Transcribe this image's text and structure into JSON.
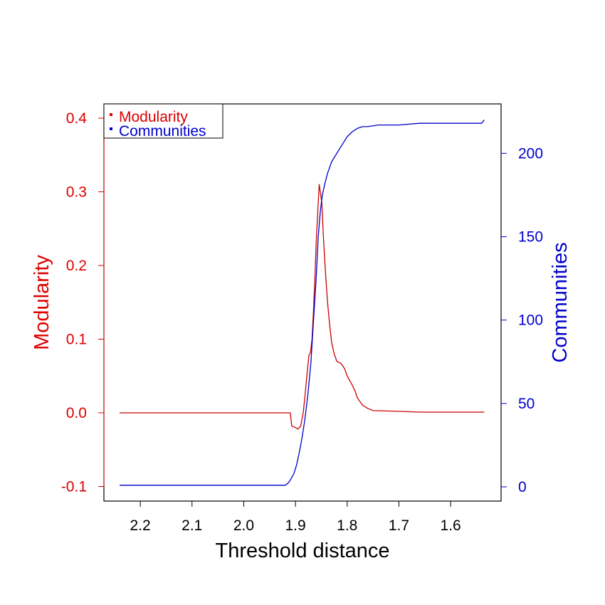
{
  "chart_data": {
    "type": "line",
    "xlabel": "Threshold distance",
    "x_reversed": true,
    "xlim": [
      2.24,
      1.53
    ],
    "x_ticks": [
      2.2,
      2.1,
      2.0,
      1.9,
      1.8,
      1.7,
      1.6
    ],
    "x_tick_labels": [
      "2.2",
      "2.1",
      "2.0",
      "1.9",
      "1.8",
      "1.7",
      "1.6"
    ],
    "y_left": {
      "label": "Modularity",
      "color": "#dd0000",
      "ylim": [
        -0.1,
        0.4
      ],
      "ticks": [
        -0.1,
        0.0,
        0.1,
        0.2,
        0.3,
        0.4
      ],
      "tick_labels": [
        "-0.1",
        "0.0",
        "0.1",
        "0.2",
        "0.3",
        "0.4"
      ]
    },
    "y_right": {
      "label": "Communities",
      "color": "#0000cc",
      "ylim": [
        0,
        220
      ],
      "ticks": [
        0,
        50,
        100,
        150,
        200
      ],
      "tick_labels": [
        "0",
        "50",
        "100",
        "150",
        "200"
      ]
    },
    "legend": {
      "placement": "top-left",
      "entries": [
        {
          "label": "Modularity",
          "color": "#dd0000"
        },
        {
          "label": "Communities",
          "color": "#0000cc"
        }
      ]
    },
    "series": [
      {
        "name": "Modularity",
        "axis": "left",
        "color": "#cc0000",
        "points": [
          [
            2.24,
            0.0
          ],
          [
            2.1,
            0.0
          ],
          [
            2.0,
            0.0
          ],
          [
            1.915,
            0.0
          ],
          [
            1.91,
            0.0
          ],
          [
            1.907,
            -0.018
          ],
          [
            1.9,
            -0.02
          ],
          [
            1.895,
            -0.022
          ],
          [
            1.89,
            -0.018
          ],
          [
            1.885,
            0.0
          ],
          [
            1.882,
            0.02
          ],
          [
            1.878,
            0.05
          ],
          [
            1.874,
            0.078
          ],
          [
            1.871,
            0.082
          ],
          [
            1.868,
            0.1
          ],
          [
            1.865,
            0.14
          ],
          [
            1.862,
            0.19
          ],
          [
            1.86,
            0.23
          ],
          [
            1.857,
            0.27
          ],
          [
            1.854,
            0.31
          ],
          [
            1.852,
            0.3
          ],
          [
            1.849,
            0.285
          ],
          [
            1.846,
            0.24
          ],
          [
            1.842,
            0.19
          ],
          [
            1.838,
            0.15
          ],
          [
            1.834,
            0.12
          ],
          [
            1.83,
            0.095
          ],
          [
            1.825,
            0.08
          ],
          [
            1.82,
            0.07
          ],
          [
            1.812,
            0.067
          ],
          [
            1.805,
            0.06
          ],
          [
            1.8,
            0.05
          ],
          [
            1.792,
            0.04
          ],
          [
            1.785,
            0.03
          ],
          [
            1.78,
            0.02
          ],
          [
            1.77,
            0.01
          ],
          [
            1.76,
            0.006
          ],
          [
            1.75,
            0.003
          ],
          [
            1.7,
            0.002
          ],
          [
            1.66,
            0.001
          ],
          [
            1.6,
            0.001
          ],
          [
            1.535,
            0.001
          ]
        ]
      },
      {
        "name": "Communities",
        "axis": "right",
        "color": "#0000cc",
        "points": [
          [
            2.24,
            1
          ],
          [
            2.1,
            1
          ],
          [
            2.0,
            1
          ],
          [
            1.92,
            1
          ],
          [
            1.915,
            2
          ],
          [
            1.91,
            4
          ],
          [
            1.903,
            8
          ],
          [
            1.898,
            13
          ],
          [
            1.893,
            20
          ],
          [
            1.888,
            28
          ],
          [
            1.882,
            40
          ],
          [
            1.876,
            55
          ],
          [
            1.87,
            75
          ],
          [
            1.865,
            100
          ],
          [
            1.86,
            125
          ],
          [
            1.856,
            150
          ],
          [
            1.852,
            165
          ],
          [
            1.848,
            175
          ],
          [
            1.843,
            182
          ],
          [
            1.838,
            188
          ],
          [
            1.83,
            195
          ],
          [
            1.82,
            200
          ],
          [
            1.81,
            205
          ],
          [
            1.8,
            210
          ],
          [
            1.79,
            213
          ],
          [
            1.78,
            215
          ],
          [
            1.77,
            216
          ],
          [
            1.76,
            216
          ],
          [
            1.74,
            217
          ],
          [
            1.7,
            217
          ],
          [
            1.66,
            218
          ],
          [
            1.6,
            218
          ],
          [
            1.54,
            218
          ],
          [
            1.535,
            220
          ]
        ]
      }
    ]
  }
}
